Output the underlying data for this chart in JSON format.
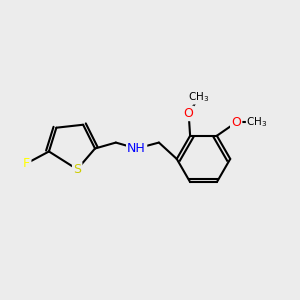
{
  "background_color": "#ececec",
  "bond_color": "#000000",
  "atom_colors": {
    "F": "#ffff00",
    "S": "#cccc00",
    "N": "#0000ff",
    "O": "#ff0000",
    "C": "#000000"
  },
  "font_size": 9,
  "line_width": 1.5
}
